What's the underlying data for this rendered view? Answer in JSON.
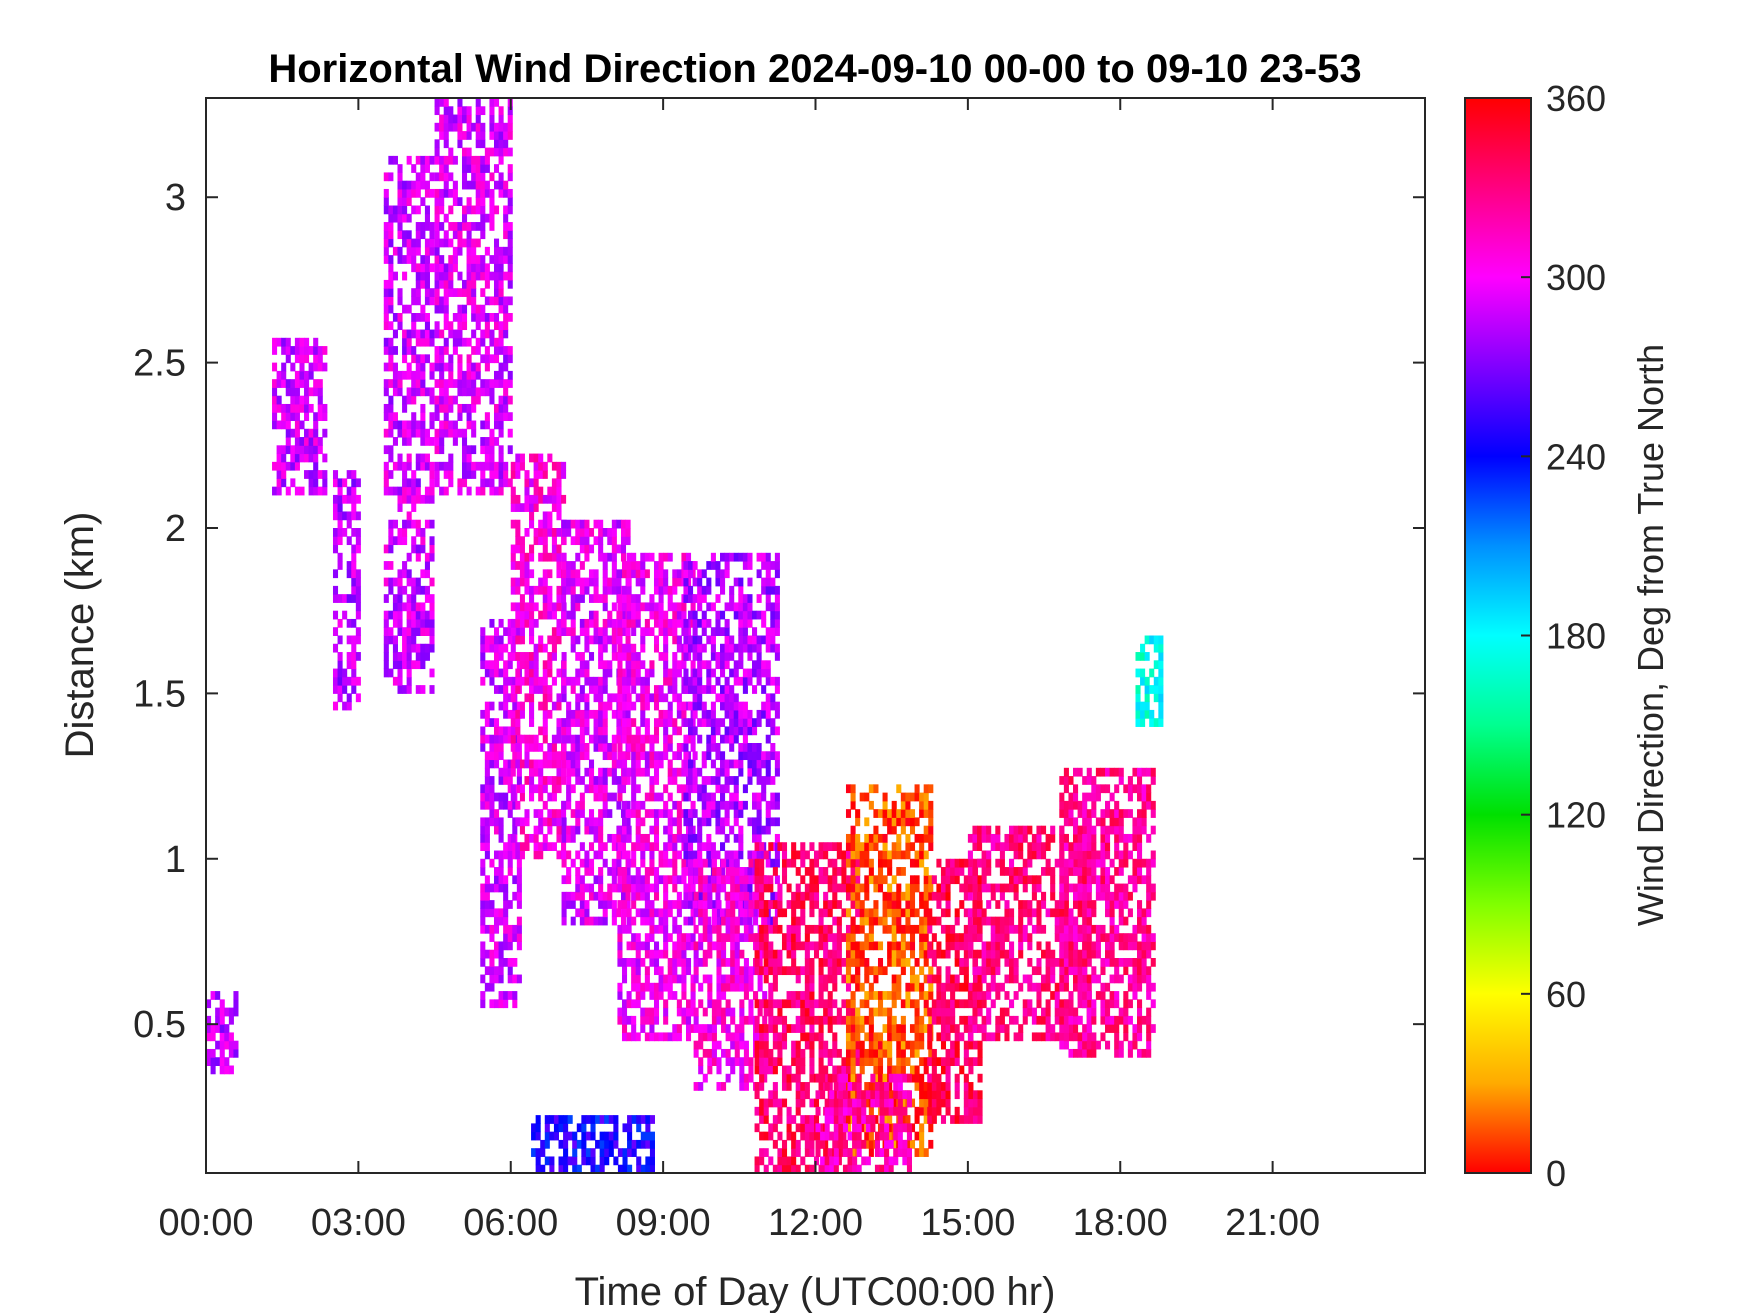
{
  "chart_data": {
    "type": "heatmap",
    "title": "Horizontal Wind Direction 2024-09-10 00-00 to 09-10 23-53",
    "xlabel": "Time of Day (UTC00:00 hr)",
    "ylabel": "Distance (km)",
    "xlim_hours": [
      0,
      24
    ],
    "ylim_km": [
      0.05,
      3.3
    ],
    "x_ticks": [
      {
        "value": 0,
        "label": "00:00"
      },
      {
        "value": 3,
        "label": "03:00"
      },
      {
        "value": 6,
        "label": "06:00"
      },
      {
        "value": 9,
        "label": "09:00"
      },
      {
        "value": 12,
        "label": "12:00"
      },
      {
        "value": 15,
        "label": "15:00"
      },
      {
        "value": 18,
        "label": "18:00"
      },
      {
        "value": 21,
        "label": "21:00"
      }
    ],
    "y_ticks": [
      {
        "value": 0.5,
        "label": "0.5"
      },
      {
        "value": 1,
        "label": "1"
      },
      {
        "value": 1.5,
        "label": "1.5"
      },
      {
        "value": 2,
        "label": "2"
      },
      {
        "value": 2.5,
        "label": "2.5"
      },
      {
        "value": 3,
        "label": "3"
      }
    ],
    "grid": false,
    "colorbar": {
      "label": "Wind Direction, Deg from True North",
      "min": 0,
      "max": 360,
      "ticks": [
        {
          "value": 0,
          "label": "0"
        },
        {
          "value": 60,
          "label": "60"
        },
        {
          "value": 120,
          "label": "120"
        },
        {
          "value": 180,
          "label": "180"
        },
        {
          "value": 240,
          "label": "240"
        },
        {
          "value": 300,
          "label": "300"
        },
        {
          "value": 360,
          "label": "360"
        }
      ],
      "colormap": [
        "#ff0000",
        "#ffaa00",
        "#ffff00",
        "#80ff00",
        "#00e000",
        "#00ff90",
        "#00ffff",
        "#0090ff",
        "#0000ff",
        "#8000ff",
        "#ff00ff",
        "#ff0080",
        "#ff0000"
      ]
    },
    "regions": [
      {
        "hour_start": 0.0,
        "hour_end": 0.6,
        "km_start": 0.35,
        "km_end": 0.6,
        "direction_deg": 285
      },
      {
        "hour_start": 1.3,
        "hour_end": 2.3,
        "km_start": 2.1,
        "km_end": 2.55,
        "direction_deg": 290
      },
      {
        "hour_start": 2.5,
        "hour_end": 3.0,
        "km_start": 1.45,
        "km_end": 2.15,
        "direction_deg": 285
      },
      {
        "hour_start": 3.5,
        "hour_end": 4.4,
        "km_start": 1.5,
        "km_end": 3.1,
        "direction_deg": 290
      },
      {
        "hour_start": 4.5,
        "hour_end": 6.0,
        "km_start": 2.1,
        "km_end": 3.3,
        "direction_deg": 293
      },
      {
        "hour_start": 5.4,
        "hour_end": 6.2,
        "km_start": 0.55,
        "km_end": 1.7,
        "direction_deg": 292
      },
      {
        "hour_start": 6.0,
        "hour_end": 7.0,
        "km_start": 1.0,
        "km_end": 2.2,
        "direction_deg": 305
      },
      {
        "hour_start": 7.0,
        "hour_end": 8.3,
        "km_start": 0.8,
        "km_end": 2.0,
        "direction_deg": 295
      },
      {
        "hour_start": 8.1,
        "hour_end": 9.6,
        "km_start": 0.45,
        "km_end": 1.9,
        "direction_deg": 300
      },
      {
        "hour_start": 9.4,
        "hour_end": 11.2,
        "km_start": 0.8,
        "km_end": 1.9,
        "direction_deg": 283
      },
      {
        "hour_start": 9.6,
        "hour_end": 11.0,
        "km_start": 0.3,
        "km_end": 1.0,
        "direction_deg": 305
      },
      {
        "hour_start": 10.8,
        "hour_end": 12.8,
        "km_start": 0.05,
        "km_end": 1.05,
        "direction_deg": 335
      },
      {
        "hour_start": 12.6,
        "hour_end": 14.3,
        "km_start": 0.1,
        "km_end": 1.2,
        "direction_deg": 12
      },
      {
        "hour_start": 12.0,
        "hour_end": 13.8,
        "km_start": 0.05,
        "km_end": 0.35,
        "direction_deg": 320
      },
      {
        "hour_start": 14.2,
        "hour_end": 15.2,
        "km_start": 0.2,
        "km_end": 1.0,
        "direction_deg": 340
      },
      {
        "hour_start": 15.0,
        "hour_end": 17.4,
        "km_start": 0.45,
        "km_end": 1.1,
        "direction_deg": 330
      },
      {
        "hour_start": 16.8,
        "hour_end": 18.6,
        "km_start": 0.4,
        "km_end": 1.25,
        "direction_deg": 325
      },
      {
        "hour_start": 6.4,
        "hour_end": 8.8,
        "km_start": 0.05,
        "km_end": 0.2,
        "direction_deg": 245
      },
      {
        "hour_start": 18.3,
        "hour_end": 18.8,
        "km_start": 1.4,
        "km_end": 1.65,
        "direction_deg": 175
      }
    ]
  }
}
